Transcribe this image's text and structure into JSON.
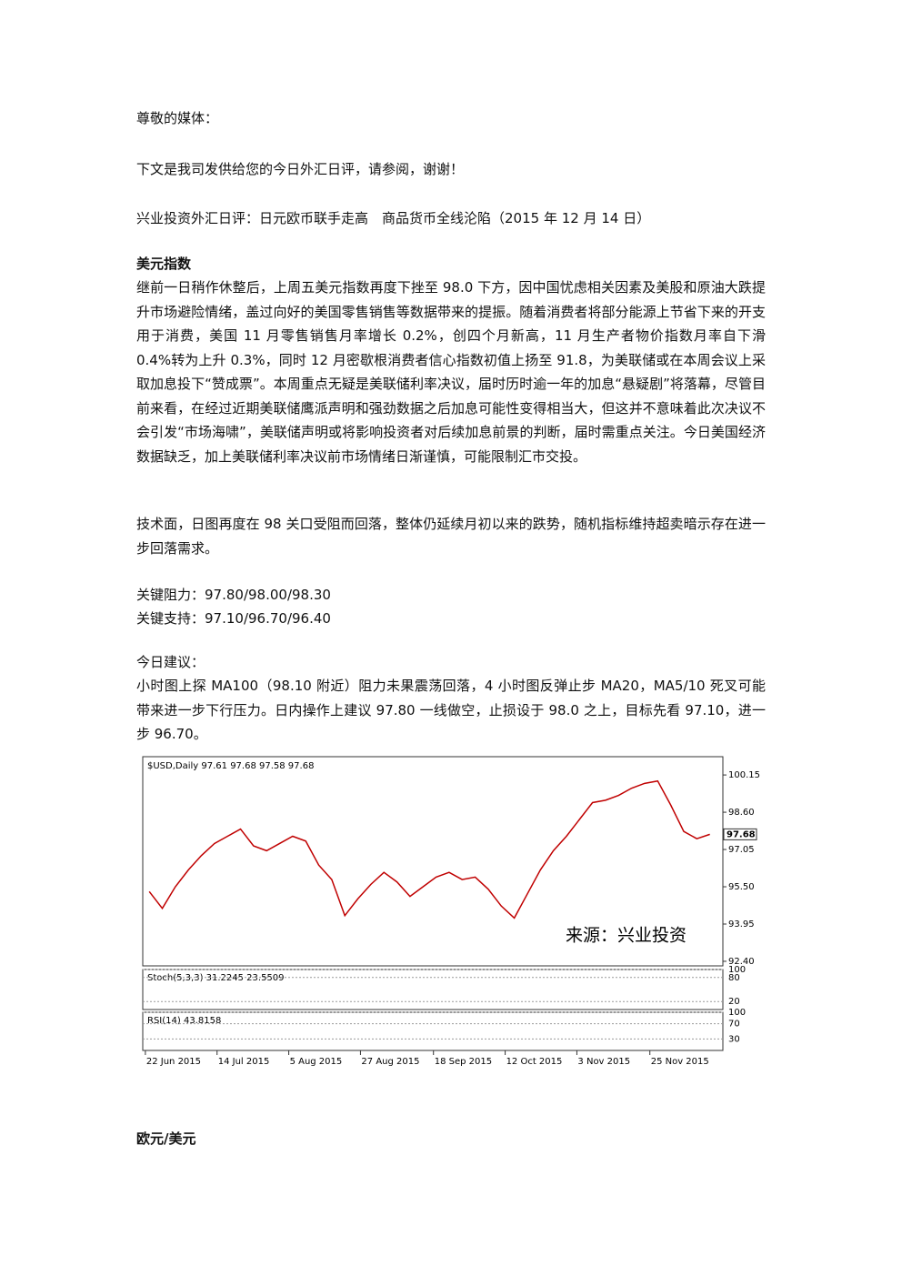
{
  "doc": {
    "greeting": "尊敬的媒体：",
    "intro": "下文是我司发供给您的今日外汇日评，请参阅，谢谢！",
    "headline": "兴业投资外汇日评：日元欧币联手走高　商品货币全线沦陷（2015 年 12 月 14 日）",
    "section_title": "美元指数",
    "paragraph_1": "继前一日稍作休整后，上周五美元指数再度下挫至 98.0 下方，因中国忧虑相关因素及美股和原油大跌提升市场避险情绪，盖过向好的美国零售销售等数据带来的提振。随着消费者将部分能源上节省下来的开支用于消费，美国 11 月零售销售月率增长 0.2%，创四个月新高，11 月生产者物价指数月率自下滑 0.4%转为上升 0.3%，同时 12 月密歇根消费者信心指数初值上扬至 91.8，为美联储或在本周会议上采取加息投下“赞成票”。本周重点无疑是美联储利率决议，届时历时逾一年的加息“悬疑剧”将落幕，尽管目前来看，在经过近期美联储鹰派声明和强劲数据之后加息可能性变得相当大，但这并不意味着此次决议不会引发“市场海啸”，美联储声明或将影响投资者对后续加息前景的判断，届时需重点关注。今日美国经济数据缺乏，加上美联储利率决议前市场情绪日渐谨慎，可能限制汇市交投。",
    "paragraph_2": "技术面，日图再度在 98 关口受阻而回落，整体仍延续月初以来的跌势，随机指标维持超卖暗示存在进一步回落需求。",
    "resistance": "关键阻力：97.80/98.00/98.30",
    "support": "关键支持：97.10/96.70/96.40",
    "advice_title": "今日建议：",
    "advice": "小时图上探 MA100（98.10 附近）阻力未果震荡回落，4 小时图反弹止步 MA20，MA5/10 死叉可能带来进一步下行压力。日内操作上建议 97.80 一线做空，止损设于 98.0 之上，目标先看 97.10，进一步 96.70。",
    "next_section": "欧元/美元"
  },
  "chart_data": {
    "type": "line",
    "title": "$USD,Daily  97.61 97.68 97.58 97.68",
    "watermark": "来源：兴业投资",
    "series": [
      {
        "name": "$USD,Daily",
        "color": "#c00000",
        "values": [
          95.3,
          94.6,
          95.5,
          96.2,
          96.8,
          97.3,
          97.6,
          97.9,
          97.2,
          97.0,
          97.3,
          97.6,
          97.4,
          96.4,
          95.8,
          94.3,
          95.0,
          95.6,
          96.1,
          95.7,
          95.1,
          95.5,
          95.9,
          96.1,
          95.8,
          95.9,
          95.4,
          94.7,
          94.2,
          95.2,
          96.2,
          97.0,
          97.6,
          98.3,
          99.0,
          99.1,
          99.3,
          99.6,
          99.8,
          99.9,
          98.9,
          97.8,
          97.5,
          97.68
        ]
      }
    ],
    "last_price": 97.68,
    "xlim": [
      -0.5,
      44
    ],
    "xticks": [
      {
        "value": -0.3,
        "label": "22 Jun 2015"
      },
      {
        "value": 5.2,
        "label": "14 Jul 2015"
      },
      {
        "value": 10.7,
        "label": "5 Aug 2015"
      },
      {
        "value": 16.2,
        "label": "27 Aug 2015"
      },
      {
        "value": 21.8,
        "label": "18 Sep 2015"
      },
      {
        "value": 27.3,
        "label": "12 Oct 2015"
      },
      {
        "value": 32.8,
        "label": "3 Nov 2015"
      },
      {
        "value": 38.4,
        "label": "25 Nov 2015"
      }
    ],
    "ylim": [
      92.21,
      100.91
    ],
    "yticks": [
      {
        "value": 100.15,
        "label": "100.15"
      },
      {
        "value": 98.6,
        "label": "98.60"
      },
      {
        "value": 97.05,
        "label": "97.05"
      },
      {
        "value": 95.5,
        "label": "95.50"
      },
      {
        "value": 93.95,
        "label": "93.95"
      },
      {
        "value": 92.4,
        "label": "92.40"
      }
    ],
    "stoch_label": "Stoch(5,3,3) 31.2245 23.5509",
    "stoch_ylim": [
      0,
      100
    ],
    "stoch_yticks": [
      100,
      80,
      20
    ],
    "rsi_label": "RSI(14) 43.8158",
    "rsi_ylim": [
      0,
      100
    ],
    "rsi_yticks": [
      100,
      70,
      30
    ]
  }
}
